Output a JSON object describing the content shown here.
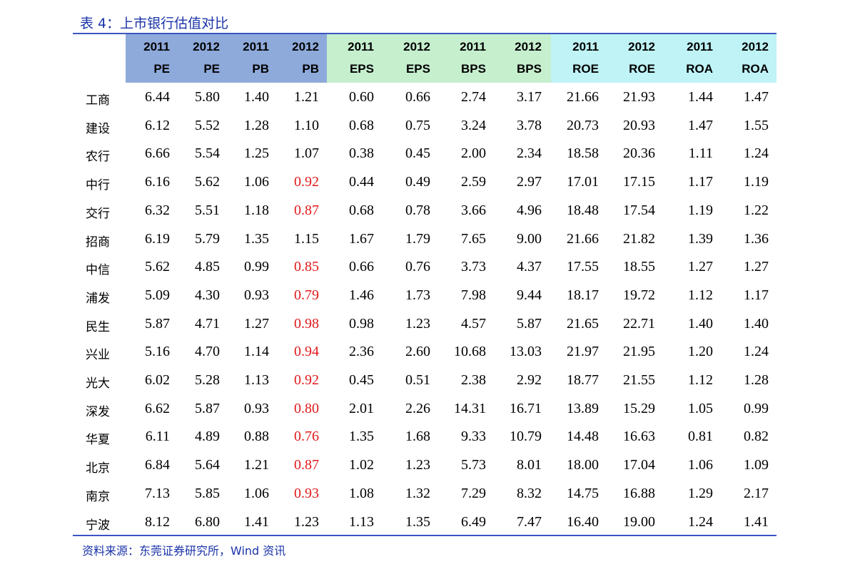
{
  "title": "表 4：上市银行估值对比",
  "source": "资料来源：东莞证券研究所，Wind 资讯",
  "colors": {
    "header_pe_pb": "#8eaadb",
    "header_eps_bps": "#c6efce",
    "header_roe_roa": "#bff3f6",
    "rule": "#3a55c4",
    "highlight_red": "#e0191b"
  },
  "columns": [
    {
      "year": "2011",
      "metric": "PE"
    },
    {
      "year": "2012",
      "metric": "PE"
    },
    {
      "year": "2011",
      "metric": "PB"
    },
    {
      "year": "2012",
      "metric": "PB"
    },
    {
      "year": "2011",
      "metric": "EPS"
    },
    {
      "year": "2012",
      "metric": "EPS"
    },
    {
      "year": "2011",
      "metric": "BPS"
    },
    {
      "year": "2012",
      "metric": "BPS"
    },
    {
      "year": "2011",
      "metric": "ROE"
    },
    {
      "year": "2012",
      "metric": "ROE"
    },
    {
      "year": "2011",
      "metric": "ROA"
    },
    {
      "year": "2012",
      "metric": "ROA"
    }
  ],
  "rows": [
    {
      "bank": "工商",
      "values": [
        "6.44",
        "5.80",
        "1.40",
        "1.21",
        "0.60",
        "0.66",
        "2.74",
        "3.17",
        "21.66",
        "21.93",
        "1.44",
        "1.47"
      ],
      "highlight": []
    },
    {
      "bank": "建设",
      "values": [
        "6.12",
        "5.52",
        "1.28",
        "1.10",
        "0.68",
        "0.75",
        "3.24",
        "3.78",
        "20.73",
        "20.93",
        "1.47",
        "1.55"
      ],
      "highlight": []
    },
    {
      "bank": "农行",
      "values": [
        "6.66",
        "5.54",
        "1.25",
        "1.07",
        "0.38",
        "0.45",
        "2.00",
        "2.34",
        "18.58",
        "20.36",
        "1.11",
        "1.24"
      ],
      "highlight": []
    },
    {
      "bank": "中行",
      "values": [
        "6.16",
        "5.62",
        "1.06",
        "0.92",
        "0.44",
        "0.49",
        "2.59",
        "2.97",
        "17.01",
        "17.15",
        "1.17",
        "1.19"
      ],
      "highlight": [
        3
      ]
    },
    {
      "bank": "交行",
      "values": [
        "6.32",
        "5.51",
        "1.18",
        "0.87",
        "0.68",
        "0.78",
        "3.66",
        "4.96",
        "18.48",
        "17.54",
        "1.19",
        "1.22"
      ],
      "highlight": [
        3
      ]
    },
    {
      "bank": "招商",
      "values": [
        "6.19",
        "5.79",
        "1.35",
        "1.15",
        "1.67",
        "1.79",
        "7.65",
        "9.00",
        "21.66",
        "21.82",
        "1.39",
        "1.36"
      ],
      "highlight": []
    },
    {
      "bank": "中信",
      "values": [
        "5.62",
        "4.85",
        "0.99",
        "0.85",
        "0.66",
        "0.76",
        "3.73",
        "4.37",
        "17.55",
        "18.55",
        "1.27",
        "1.27"
      ],
      "highlight": [
        3
      ]
    },
    {
      "bank": "浦发",
      "values": [
        "5.09",
        "4.30",
        "0.93",
        "0.79",
        "1.46",
        "1.73",
        "7.98",
        "9.44",
        "18.17",
        "19.72",
        "1.12",
        "1.17"
      ],
      "highlight": [
        3
      ]
    },
    {
      "bank": "民生",
      "values": [
        "5.87",
        "4.71",
        "1.27",
        "0.98",
        "0.98",
        "1.23",
        "4.57",
        "5.87",
        "21.65",
        "22.71",
        "1.40",
        "1.40"
      ],
      "highlight": [
        3
      ]
    },
    {
      "bank": "兴业",
      "values": [
        "5.16",
        "4.70",
        "1.14",
        "0.94",
        "2.36",
        "2.60",
        "10.68",
        "13.03",
        "21.97",
        "21.95",
        "1.20",
        "1.24"
      ],
      "highlight": [
        3
      ]
    },
    {
      "bank": "光大",
      "values": [
        "6.02",
        "5.28",
        "1.13",
        "0.92",
        "0.45",
        "0.51",
        "2.38",
        "2.92",
        "18.77",
        "21.55",
        "1.12",
        "1.28"
      ],
      "highlight": [
        3
      ]
    },
    {
      "bank": "深发",
      "values": [
        "6.62",
        "5.87",
        "0.93",
        "0.80",
        "2.01",
        "2.26",
        "14.31",
        "16.71",
        "13.89",
        "15.29",
        "1.05",
        "0.99"
      ],
      "highlight": [
        3
      ]
    },
    {
      "bank": "华夏",
      "values": [
        "6.11",
        "4.89",
        "0.88",
        "0.76",
        "1.35",
        "1.68",
        "9.33",
        "10.79",
        "14.48",
        "16.63",
        "0.81",
        "0.82"
      ],
      "highlight": [
        3
      ]
    },
    {
      "bank": "北京",
      "values": [
        "6.84",
        "5.64",
        "1.21",
        "0.87",
        "1.02",
        "1.23",
        "5.73",
        "8.01",
        "18.00",
        "17.04",
        "1.06",
        "1.09"
      ],
      "highlight": [
        3
      ]
    },
    {
      "bank": "南京",
      "values": [
        "7.13",
        "5.85",
        "1.06",
        "0.93",
        "1.08",
        "1.32",
        "7.29",
        "8.32",
        "14.75",
        "16.88",
        "1.29",
        "2.17"
      ],
      "highlight": [
        3
      ]
    },
    {
      "bank": "宁波",
      "values": [
        "8.12",
        "6.80",
        "1.41",
        "1.23",
        "1.13",
        "1.35",
        "6.49",
        "7.47",
        "16.40",
        "19.00",
        "1.24",
        "1.41"
      ],
      "highlight": []
    }
  ]
}
